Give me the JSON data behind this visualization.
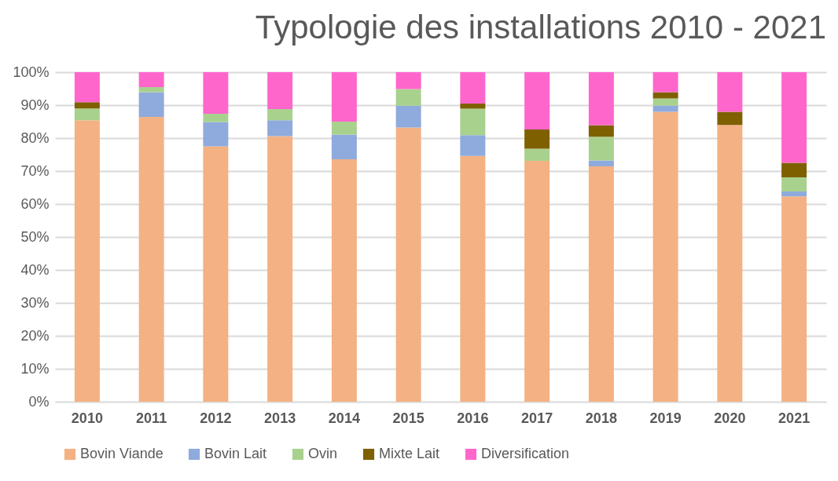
{
  "chart_data": {
    "type": "bar",
    "title": "Typologie des installations 2010 - 2021",
    "stacked": true,
    "categories": [
      "2010",
      "2011",
      "2012",
      "2013",
      "2014",
      "2015",
      "2016",
      "2017",
      "2018",
      "2019",
      "2020",
      "2021"
    ],
    "series": [
      {
        "name": "Bovin Viande",
        "color": "#f4b183",
        "values": [
          85.4,
          86.4,
          77.5,
          80.6,
          73.6,
          83.2,
          74.6,
          73.1,
          71.4,
          88.0,
          84.0,
          62.3
        ]
      },
      {
        "name": "Bovin Lait",
        "color": "#8faadc",
        "values": [
          0,
          7.5,
          7.4,
          4.8,
          7.5,
          6.6,
          6.3,
          0,
          1.8,
          1.9,
          0,
          1.5
        ]
      },
      {
        "name": "Ovin",
        "color": "#a9d18e",
        "values": [
          3.6,
          1.6,
          2.5,
          3.4,
          3.9,
          5.1,
          8.0,
          3.7,
          7.2,
          2.1,
          0,
          4.3
        ]
      },
      {
        "name": "Mixte Lait",
        "color": "#7f6000",
        "values": [
          1.9,
          0,
          0,
          0,
          0,
          0,
          1.6,
          5.8,
          3.5,
          1.9,
          4.0,
          4.4
        ]
      },
      {
        "name": "Diversification",
        "color": "#ff66cc",
        "values": [
          9.1,
          4.5,
          12.6,
          11.2,
          15.0,
          5.1,
          9.5,
          17.4,
          16.1,
          6.1,
          12.0,
          27.5
        ]
      }
    ],
    "ylim": [
      0,
      100
    ],
    "yticks": [
      {
        "value": 0,
        "label": "0%"
      },
      {
        "value": 10,
        "label": "10%"
      },
      {
        "value": 20,
        "label": "20%"
      },
      {
        "value": 30,
        "label": "30%"
      },
      {
        "value": 40,
        "label": "40%"
      },
      {
        "value": 50,
        "label": "50%"
      },
      {
        "value": 60,
        "label": "60%"
      },
      {
        "value": 70,
        "label": "70%"
      },
      {
        "value": 80,
        "label": "80%"
      },
      {
        "value": 90,
        "label": "90%"
      },
      {
        "value": 100,
        "label": "100%"
      }
    ],
    "grid": "y",
    "legend": "bottom"
  }
}
